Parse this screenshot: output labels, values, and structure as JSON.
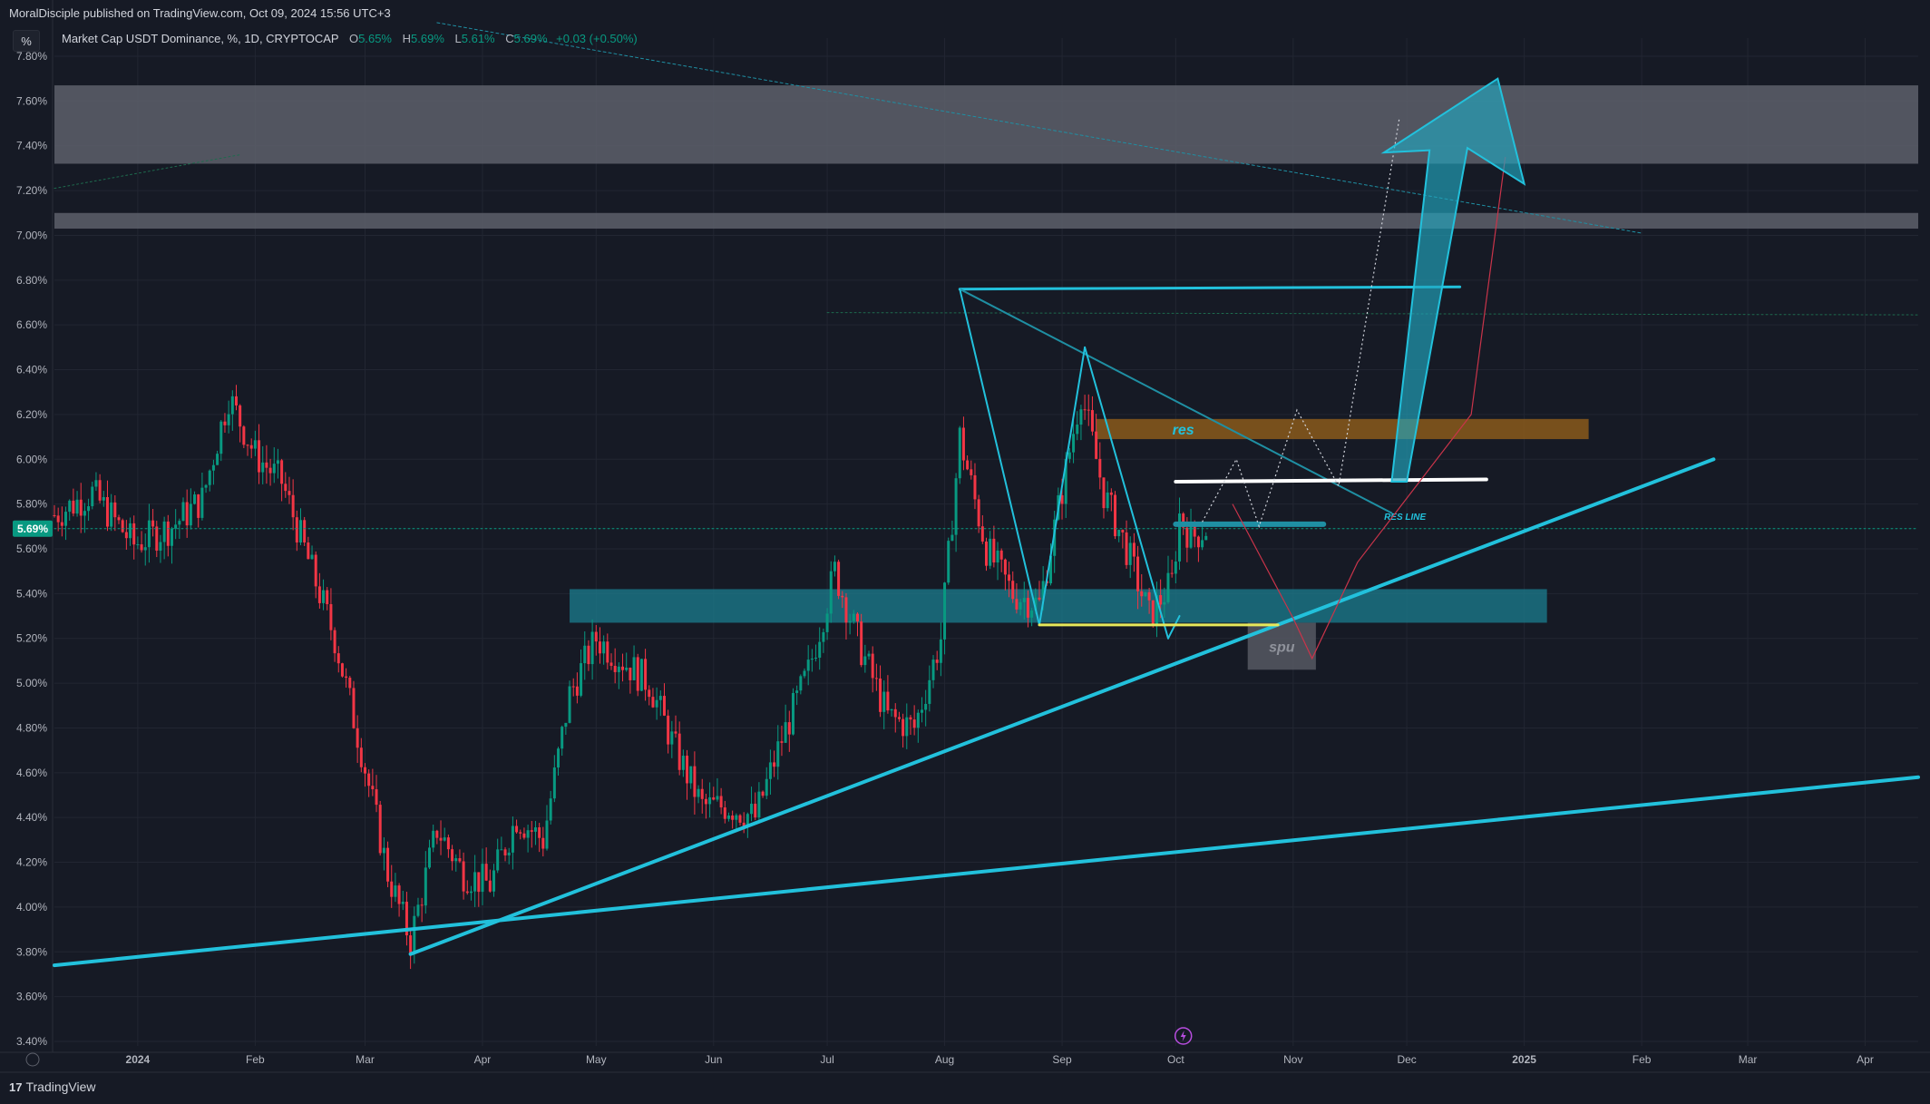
{
  "header": {
    "published": "MoralDisciple published on TradingView.com, Oct 09, 2024 15:56 UTC+3",
    "scale_button": "%",
    "symbol": "Market Cap USDT Dominance, %, 1D, CRYPTOCAP",
    "o_label": "O",
    "o_value": "5.65%",
    "h_label": "H",
    "h_value": "5.69%",
    "l_label": "L",
    "l_value": "5.61%",
    "c_label": "C",
    "c_value": "5.69%",
    "change": "+0.03 (+0.50%)"
  },
  "footer": {
    "brand": "TradingView",
    "logo_glyph": "17"
  },
  "chart_data": {
    "type": "candlestick",
    "title": "Market Cap USDT Dominance, %, 1D, CRYPTOCAP",
    "y_unit": "%",
    "ylim": [
      3.4,
      7.8
    ],
    "y_ticks": [
      "7.80%",
      "7.60%",
      "7.40%",
      "7.20%",
      "7.00%",
      "6.80%",
      "6.60%",
      "6.40%",
      "6.20%",
      "6.00%",
      "5.80%",
      "5.60%",
      "5.40%",
      "5.20%",
      "5.00%",
      "4.80%",
      "4.60%",
      "4.40%",
      "4.20%",
      "4.00%",
      "3.80%",
      "3.60%",
      "3.40%"
    ],
    "x_ticks": [
      "2024",
      "Feb",
      "Mar",
      "Apr",
      "May",
      "Jun",
      "Jul",
      "Aug",
      "Sep",
      "Oct",
      "Nov",
      "Dec",
      "2025",
      "Feb",
      "Mar",
      "Apr"
    ],
    "x_tick_dates": [
      "2024-01-01",
      "2024-02-01",
      "2024-03-01",
      "2024-04-01",
      "2024-05-01",
      "2024-06-01",
      "2024-07-01",
      "2024-08-01",
      "2024-09-01",
      "2024-10-01",
      "2024-11-01",
      "2024-12-01",
      "2025-01-01",
      "2025-02-01",
      "2025-03-01",
      "2025-04-01"
    ],
    "x_range": [
      "2023-12-10",
      "2025-04-15"
    ],
    "last_price": "5.69%",
    "close_path": [
      [
        "2023-12-10",
        5.75
      ],
      [
        "2023-12-20",
        5.85
      ],
      [
        "2023-12-31",
        5.62
      ],
      [
        "2024-01-10",
        5.7
      ],
      [
        "2024-01-18",
        5.82
      ],
      [
        "2024-01-25",
        6.28
      ],
      [
        "2024-02-01",
        6.02
      ],
      [
        "2024-02-08",
        5.9
      ],
      [
        "2024-02-15",
        5.55
      ],
      [
        "2024-02-22",
        5.2
      ],
      [
        "2024-02-29",
        4.7
      ],
      [
        "2024-03-07",
        4.15
      ],
      [
        "2024-03-13",
        3.85
      ],
      [
        "2024-03-20",
        4.35
      ],
      [
        "2024-03-27",
        4.15
      ],
      [
        "2024-04-03",
        4.1
      ],
      [
        "2024-04-10",
        4.4
      ],
      [
        "2024-04-17",
        4.3
      ],
      [
        "2024-04-24",
        4.95
      ],
      [
        "2024-05-01",
        5.2
      ],
      [
        "2024-05-08",
        5.1
      ],
      [
        "2024-05-15",
        5.0
      ],
      [
        "2024-05-22",
        4.7
      ],
      [
        "2024-05-29",
        4.45
      ],
      [
        "2024-06-05",
        4.45
      ],
      [
        "2024-06-12",
        4.4
      ],
      [
        "2024-06-19",
        4.75
      ],
      [
        "2024-06-26",
        5.05
      ],
      [
        "2024-07-03",
        5.5
      ],
      [
        "2024-07-10",
        5.15
      ],
      [
        "2024-07-17",
        4.85
      ],
      [
        "2024-07-24",
        4.8
      ],
      [
        "2024-07-31",
        5.2
      ],
      [
        "2024-08-05",
        6.1
      ],
      [
        "2024-08-12",
        5.6
      ],
      [
        "2024-08-19",
        5.4
      ],
      [
        "2024-08-26",
        5.35
      ],
      [
        "2024-09-02",
        5.95
      ],
      [
        "2024-09-06",
        6.3
      ],
      [
        "2024-09-12",
        5.85
      ],
      [
        "2024-09-18",
        5.6
      ],
      [
        "2024-09-24",
        5.3
      ],
      [
        "2024-09-30",
        5.45
      ],
      [
        "2024-10-02",
        5.75
      ],
      [
        "2024-10-05",
        5.65
      ],
      [
        "2024-10-09",
        5.69
      ]
    ],
    "zones": [
      {
        "from": 7.32,
        "to": 7.67
      },
      {
        "from": 7.03,
        "to": 7.1
      },
      {
        "from": 5.27,
        "to": 5.42
      },
      {
        "from": 6.09,
        "to": 6.18,
        "label": "res"
      },
      {
        "from": 5.06,
        "to": 5.27,
        "label": "spu"
      }
    ],
    "lines": [
      {
        "label": "RES LINE"
      }
    ],
    "colors": {
      "up": "#089981",
      "down": "#f23645",
      "trend": "#22c1dc",
      "zone_teal": "#1b7d8f",
      "zone_orange": "#8a5a1b",
      "zone_gray": "#5a5d66"
    }
  }
}
